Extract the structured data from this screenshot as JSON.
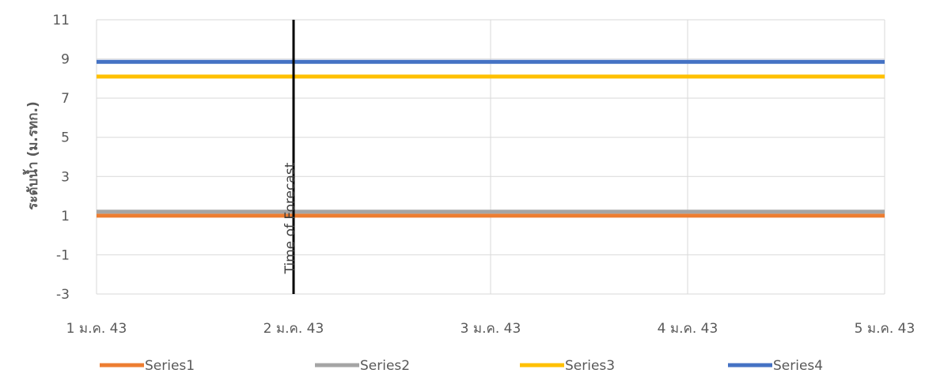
{
  "chart_data": {
    "type": "line",
    "title": "",
    "xlabel": "",
    "ylabel": "ระดับน้ำ (ม.รทก.)",
    "x": [
      "1 ม.ค. 43",
      "2 ม.ค. 43",
      "3 ม.ค. 43",
      "4 ม.ค. 43",
      "5 ม.ค. 43"
    ],
    "y_ticks": [
      "11",
      "9",
      "7",
      "5",
      "3",
      "1",
      "-1",
      "-3"
    ],
    "ylim": [
      -3,
      11
    ],
    "grid": true,
    "legend_position": "bottom",
    "series": [
      {
        "name": "Series1",
        "color": "#ED7D31",
        "values": [
          1.0,
          1.0,
          1.0,
          1.0,
          1.0
        ]
      },
      {
        "name": "Series2",
        "color": "#A5A5A5",
        "values": [
          1.2,
          1.2,
          1.2,
          1.2,
          1.2
        ]
      },
      {
        "name": "Series3",
        "color": "#FFC000",
        "values": [
          8.1,
          8.1,
          8.1,
          8.1,
          8.1
        ]
      },
      {
        "name": "Series4",
        "color": "#4472C4",
        "values": [
          8.85,
          8.85,
          8.85,
          8.85,
          8.85
        ]
      }
    ],
    "annotations": [
      {
        "text": "Time of Forecast",
        "x": "2 ม.ค. 43",
        "color": "#000000"
      }
    ]
  }
}
